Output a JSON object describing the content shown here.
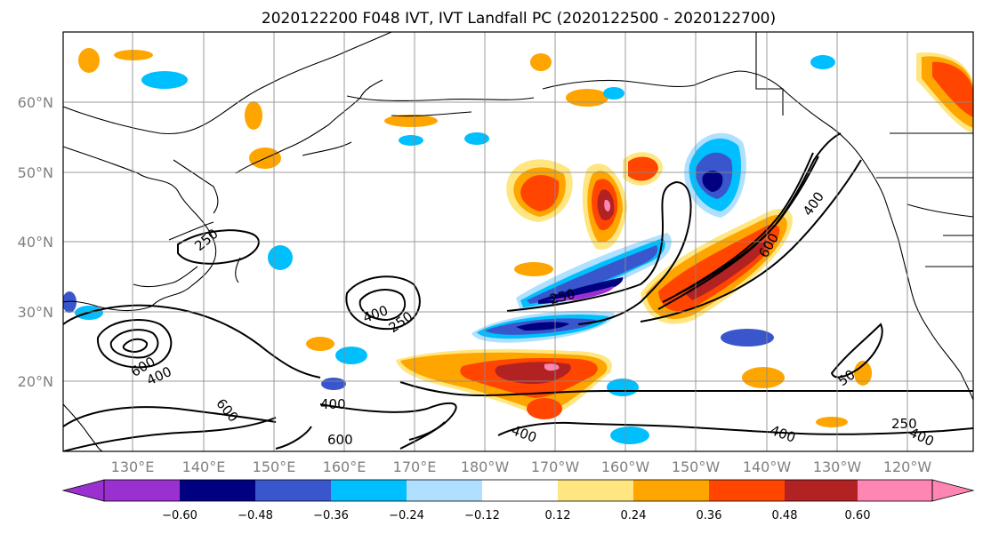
{
  "title": "2020122200 F048 IVT, IVT Landfall PC (2020122500 - 2020122700)",
  "map": {
    "lat_ticks": [
      "60°N",
      "50°N",
      "40°N",
      "30°N",
      "20°N"
    ],
    "lon_ticks": [
      "130°E",
      "140°E",
      "150°E",
      "160°E",
      "170°E",
      "180°W",
      "170°W",
      "160°W",
      "150°W",
      "140°W",
      "130°W",
      "120°W"
    ],
    "contour_labels": [
      "250",
      "400",
      "600",
      "250",
      "400",
      "250",
      "600",
      "400",
      "600",
      "400",
      "600",
      "400",
      "250",
      "400",
      "250",
      "400",
      "250",
      "600",
      "400",
      "50"
    ],
    "grid": true
  },
  "colorbar": {
    "ticks": [
      "−0.60",
      "−0.48",
      "−0.36",
      "−0.24",
      "−0.12",
      "0.12",
      "0.24",
      "0.36",
      "0.48",
      "0.60"
    ],
    "colors": [
      "#9b30d0",
      "#000080",
      "#3a56cc",
      "#00bfff",
      "#b0e0ff",
      "#ffffff",
      "#ffe680",
      "#ffa500",
      "#ff4500",
      "#b22222",
      "#ff85b3"
    ],
    "extend": "both"
  }
}
